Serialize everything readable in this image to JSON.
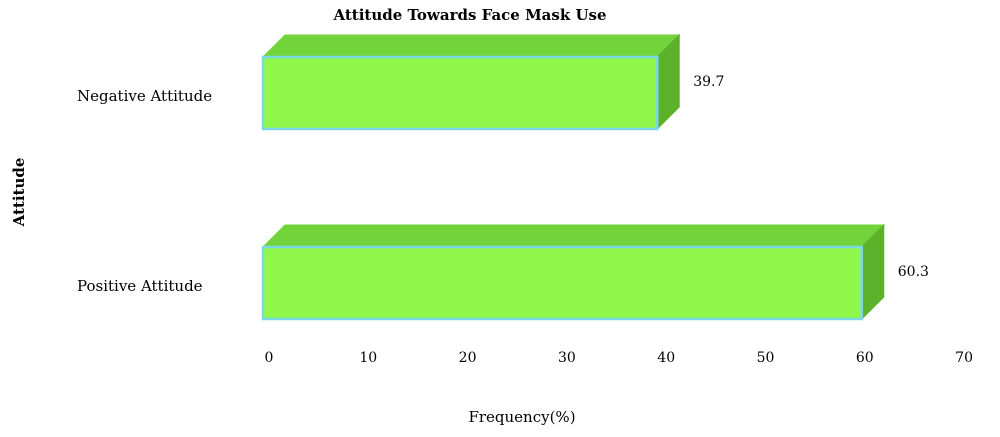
{
  "chart_data": {
    "type": "bar",
    "orientation": "horizontal",
    "title": "Attitude Towards Face Mask Use",
    "xlabel": "Frequency(%)",
    "ylabel": "Attitude",
    "categories": [
      "Negative Attitude",
      "Positive Attitude"
    ],
    "values": [
      39.7,
      60.3
    ],
    "data_labels": [
      "39.7",
      "60.3"
    ],
    "xlim": [
      0,
      70
    ],
    "xticks": [
      "0",
      "10",
      "20",
      "30",
      "40",
      "50",
      "60",
      "70"
    ],
    "grid": false,
    "legend": "none",
    "style": "3d",
    "colors": {
      "bar_front": "#8ff84a",
      "bar_top": "#72d43a",
      "bar_side": "#5bb22a",
      "bar_edge": "#7ad6e8"
    }
  }
}
